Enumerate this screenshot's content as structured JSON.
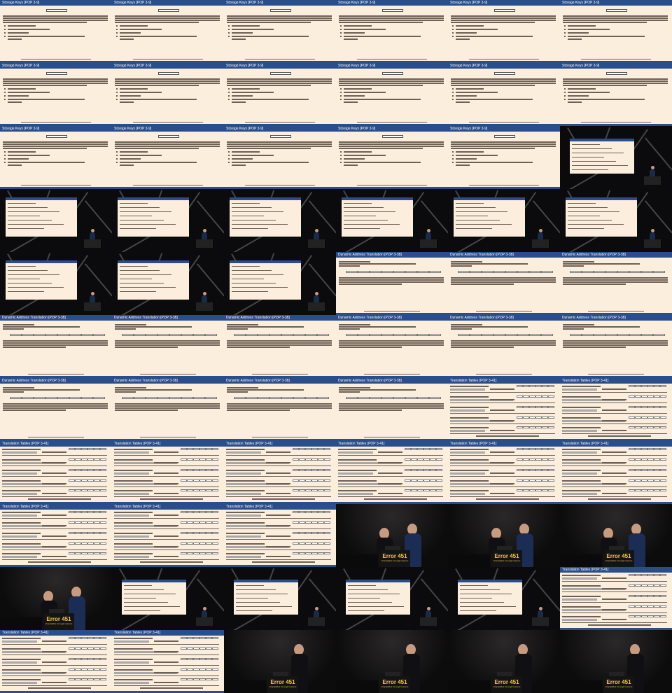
{
  "contact_sheet": {
    "columns": 6,
    "rows": 11
  },
  "slides": {
    "storage_keys": {
      "title": "Storage Keys [POP 3-9]"
    },
    "dat": {
      "title": "Dynamic Address Translation [POP 3-38]"
    },
    "tables": {
      "title": "Translation Tables [POP 3-41]"
    }
  },
  "stage": {
    "sign_line1": "Error 451",
    "sign_line2": "Unavailable for legal reasons"
  },
  "tiles": [
    {
      "kind": "storage_keys"
    },
    {
      "kind": "storage_keys"
    },
    {
      "kind": "storage_keys"
    },
    {
      "kind": "storage_keys"
    },
    {
      "kind": "storage_keys"
    },
    {
      "kind": "storage_keys"
    },
    {
      "kind": "storage_keys"
    },
    {
      "kind": "storage_keys"
    },
    {
      "kind": "storage_keys"
    },
    {
      "kind": "storage_keys"
    },
    {
      "kind": "storage_keys"
    },
    {
      "kind": "storage_keys"
    },
    {
      "kind": "storage_keys"
    },
    {
      "kind": "storage_keys"
    },
    {
      "kind": "storage_keys"
    },
    {
      "kind": "storage_keys"
    },
    {
      "kind": "storage_keys"
    },
    {
      "kind": "dark_storage"
    },
    {
      "kind": "dark_dat"
    },
    {
      "kind": "dark_dat"
    },
    {
      "kind": "dark_dat"
    },
    {
      "kind": "dark_dat"
    },
    {
      "kind": "dark_dat"
    },
    {
      "kind": "dark_dat"
    },
    {
      "kind": "dark_dat"
    },
    {
      "kind": "dark_dat"
    },
    {
      "kind": "dark_dat"
    },
    {
      "kind": "dat"
    },
    {
      "kind": "dat"
    },
    {
      "kind": "dat"
    },
    {
      "kind": "dat"
    },
    {
      "kind": "dat"
    },
    {
      "kind": "dat"
    },
    {
      "kind": "dat"
    },
    {
      "kind": "dat"
    },
    {
      "kind": "dat"
    },
    {
      "kind": "dat"
    },
    {
      "kind": "dat"
    },
    {
      "kind": "dat"
    },
    {
      "kind": "dat"
    },
    {
      "kind": "tables"
    },
    {
      "kind": "tables"
    },
    {
      "kind": "tables"
    },
    {
      "kind": "tables"
    },
    {
      "kind": "tables"
    },
    {
      "kind": "tables"
    },
    {
      "kind": "tables"
    },
    {
      "kind": "tables"
    },
    {
      "kind": "tables"
    },
    {
      "kind": "tables"
    },
    {
      "kind": "tables"
    },
    {
      "kind": "stage_duo"
    },
    {
      "kind": "stage_duo"
    },
    {
      "kind": "stage_duo"
    },
    {
      "kind": "stage_duo"
    },
    {
      "kind": "dark_tables"
    },
    {
      "kind": "dark_tables"
    },
    {
      "kind": "dark_tables"
    },
    {
      "kind": "dark_tables"
    },
    {
      "kind": "tables"
    },
    {
      "kind": "tables"
    },
    {
      "kind": "tables"
    },
    {
      "kind": "stage_solo"
    },
    {
      "kind": "stage_solo"
    },
    {
      "kind": "stage_solo"
    },
    {
      "kind": "stage_solo"
    }
  ]
}
